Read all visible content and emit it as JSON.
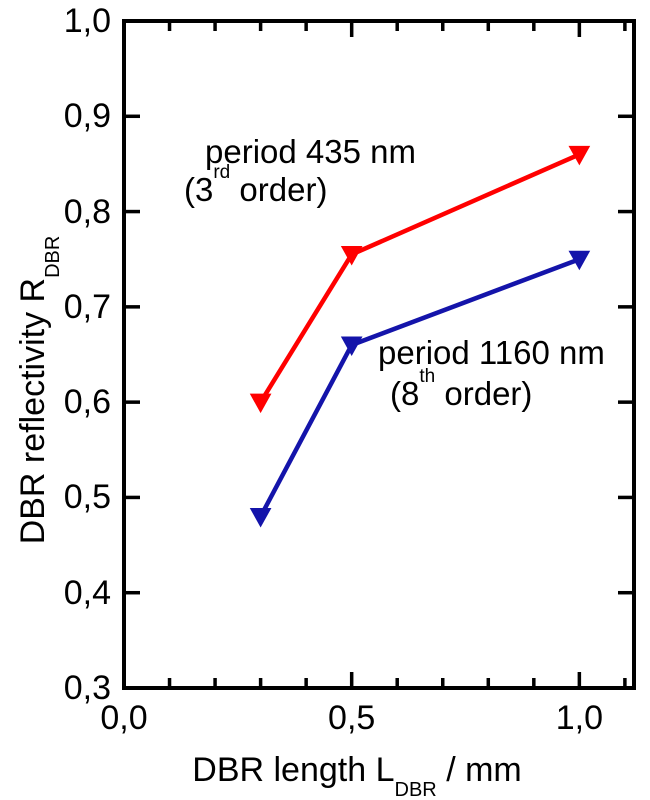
{
  "chart_data": {
    "type": "line",
    "title": "",
    "xlabel": "DBR length L_DBR / mm",
    "ylabel": "DBR reflectivity R_DBR",
    "xlabel_parts": {
      "pre": "DBR length L",
      "sub": "DBR",
      "post": " / mm"
    },
    "ylabel_parts": {
      "pre": "DBR reflectivity R",
      "sub": "DBR"
    },
    "xlim": [
      0.0,
      1.12
    ],
    "ylim": [
      0.3,
      1.0
    ],
    "grid": false,
    "legend": "none (inline annotations)",
    "background_color": "#ffffff",
    "axis_color": "#000000",
    "x_major_ticks": [
      0.0,
      0.5,
      1.0
    ],
    "x_major_labels": [
      "0,0",
      "0,5",
      "1,0"
    ],
    "x_minor_ticks": [
      0.1,
      0.2,
      0.3,
      0.4,
      0.6,
      0.7,
      0.8,
      0.9,
      1.1
    ],
    "y_major_ticks": [
      0.3,
      0.4,
      0.5,
      0.6,
      0.7,
      0.8,
      0.9,
      1.0
    ],
    "y_major_labels": [
      "0,3",
      "0,4",
      "0,5",
      "0,6",
      "0,7",
      "0,8",
      "0,9",
      "1,0"
    ],
    "series": [
      {
        "name": "period 435 nm (3rd order)",
        "color": "#ff0000",
        "marker": "triangle-down",
        "x": [
          0.3,
          0.5,
          1.0
        ],
        "y": [
          0.6,
          0.755,
          0.86
        ]
      },
      {
        "name": "period 1160 nm (8th order)",
        "color": "#1414aa",
        "marker": "triangle-down",
        "x": [
          0.3,
          0.5,
          1.0
        ],
        "y": [
          0.48,
          0.66,
          0.75
        ]
      }
    ],
    "annotations": [
      {
        "line1": "period 435 nm",
        "line2_pre": "(3",
        "line2_sup": "rd",
        "line2_post": " order)"
      },
      {
        "line1": "period 1160 nm",
        "line2_pre": "(8",
        "line2_sup": "th",
        "line2_post": " order)"
      }
    ]
  }
}
